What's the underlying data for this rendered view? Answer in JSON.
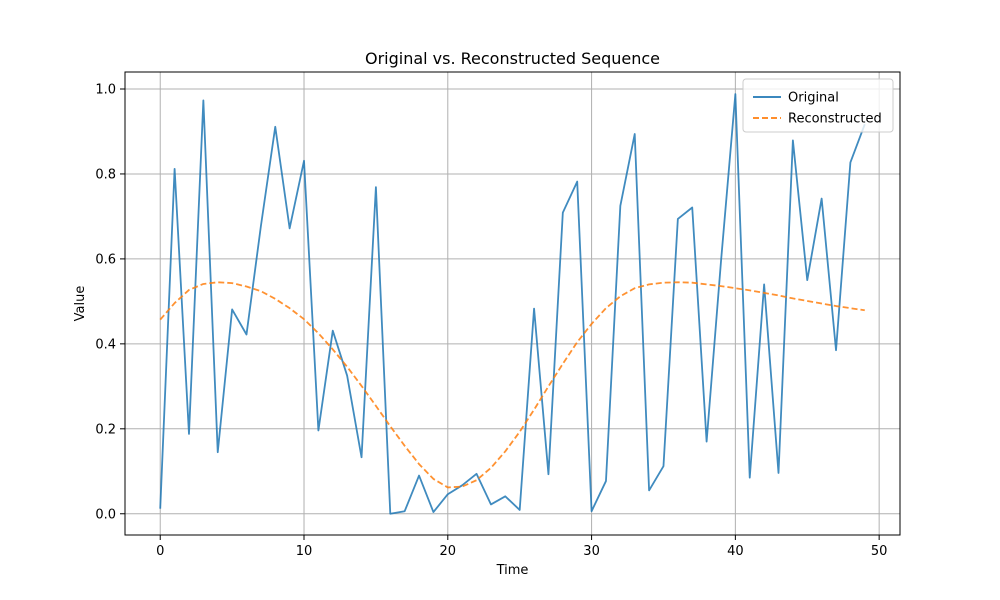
{
  "chart_data": {
    "type": "line",
    "title": "Original vs. Reconstructed Sequence",
    "xlabel": "Time",
    "ylabel": "Value",
    "xlim": [
      -2.45,
      51.45
    ],
    "ylim": [
      -0.05,
      1.04
    ],
    "xticks": [
      0,
      10,
      20,
      30,
      40,
      50
    ],
    "yticks": [
      0.0,
      0.2,
      0.4,
      0.6,
      0.8,
      1.0
    ],
    "xtick_labels": [
      "0",
      "10",
      "20",
      "30",
      "40",
      "50"
    ],
    "ytick_labels": [
      "0.0",
      "0.2",
      "0.4",
      "0.6",
      "0.8",
      "1.0"
    ],
    "grid": true,
    "legend_position": "top-right",
    "x": [
      0,
      1,
      2,
      3,
      4,
      5,
      6,
      7,
      8,
      9,
      10,
      11,
      12,
      13,
      14,
      15,
      16,
      17,
      18,
      19,
      20,
      21,
      22,
      23,
      24,
      25,
      26,
      27,
      28,
      29,
      30,
      31,
      32,
      33,
      34,
      35,
      36,
      37,
      38,
      39,
      40,
      41,
      42,
      43,
      44,
      45,
      46,
      47,
      48,
      49
    ],
    "series": [
      {
        "name": "Original",
        "color": "#1f77b4",
        "style": "solid",
        "values": [
          0.012,
          0.812,
          0.188,
          0.973,
          0.145,
          0.481,
          0.422,
          0.677,
          0.911,
          0.672,
          0.831,
          0.196,
          0.431,
          0.325,
          0.133,
          0.769,
          0.0,
          0.006,
          0.09,
          0.004,
          0.046,
          0.067,
          0.094,
          0.022,
          0.041,
          0.009,
          0.483,
          0.093,
          0.709,
          0.782,
          0.006,
          0.077,
          0.725,
          0.894,
          0.055,
          0.112,
          0.694,
          0.721,
          0.17,
          0.594,
          0.988,
          0.085,
          0.54,
          0.096,
          0.879,
          0.55,
          0.742,
          0.385,
          0.827,
          0.917
        ]
      },
      {
        "name": "Reconstructed",
        "color": "#ff7f0e",
        "style": "dashed",
        "values": [
          0.457,
          0.496,
          0.527,
          0.541,
          0.545,
          0.543,
          0.535,
          0.524,
          0.506,
          0.484,
          0.458,
          0.425,
          0.387,
          0.346,
          0.301,
          0.254,
          0.206,
          0.16,
          0.117,
          0.082,
          0.062,
          0.064,
          0.079,
          0.108,
          0.147,
          0.193,
          0.245,
          0.3,
          0.353,
          0.404,
          0.447,
          0.484,
          0.512,
          0.531,
          0.54,
          0.544,
          0.545,
          0.544,
          0.54,
          0.536,
          0.531,
          0.526,
          0.52,
          0.514,
          0.507,
          0.501,
          0.495,
          0.489,
          0.484,
          0.479
        ]
      }
    ]
  }
}
